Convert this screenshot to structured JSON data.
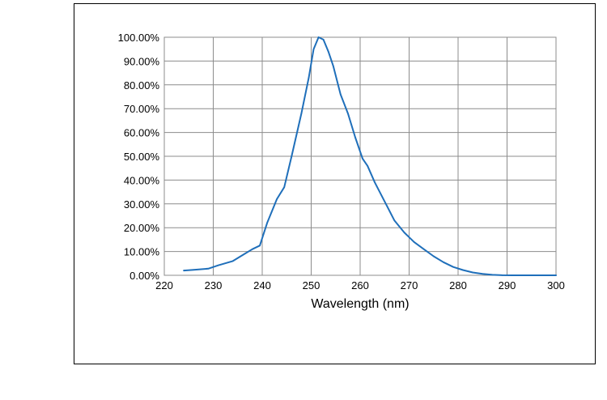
{
  "chart_data": {
    "type": "line",
    "title": "",
    "xlabel": "Wavelength (nm)",
    "ylabel": "",
    "xlim": [
      220,
      300
    ],
    "ylim": [
      0,
      100
    ],
    "x_ticks": [
      "220",
      "230",
      "240",
      "250",
      "260",
      "270",
      "280",
      "290",
      "300"
    ],
    "y_ticks": [
      "0.00%",
      "10.00%",
      "20.00%",
      "30.00%",
      "40.00%",
      "50.00%",
      "60.00%",
      "70.00%",
      "80.00%",
      "90.00%",
      "100.00%"
    ],
    "grid": true,
    "legend": "none",
    "series": [
      {
        "color": "#1f6fba",
        "x": [
          224,
          226,
          229,
          231,
          234,
          236,
          238,
          239.5,
          241,
          243,
          244.5,
          246,
          248,
          249.5,
          250.5,
          251.5,
          252.5,
          253.5,
          254.5,
          256,
          257.5,
          259,
          260.5,
          261.5,
          263,
          265,
          267,
          269,
          271,
          273,
          275,
          277,
          279,
          281,
          283,
          285,
          287,
          289,
          291,
          295,
          300
        ],
        "y": [
          2,
          2.3,
          2.8,
          4.2,
          6,
          8.5,
          11,
          12.5,
          22,
          32,
          37,
          50,
          68,
          83,
          95,
          100,
          99,
          94,
          88,
          76,
          68,
          58,
          49,
          46,
          39,
          31,
          23,
          18,
          14,
          11,
          8,
          5.5,
          3.5,
          2.2,
          1.2,
          0.6,
          0.2,
          0.05,
          0,
          0,
          0
        ]
      }
    ]
  }
}
